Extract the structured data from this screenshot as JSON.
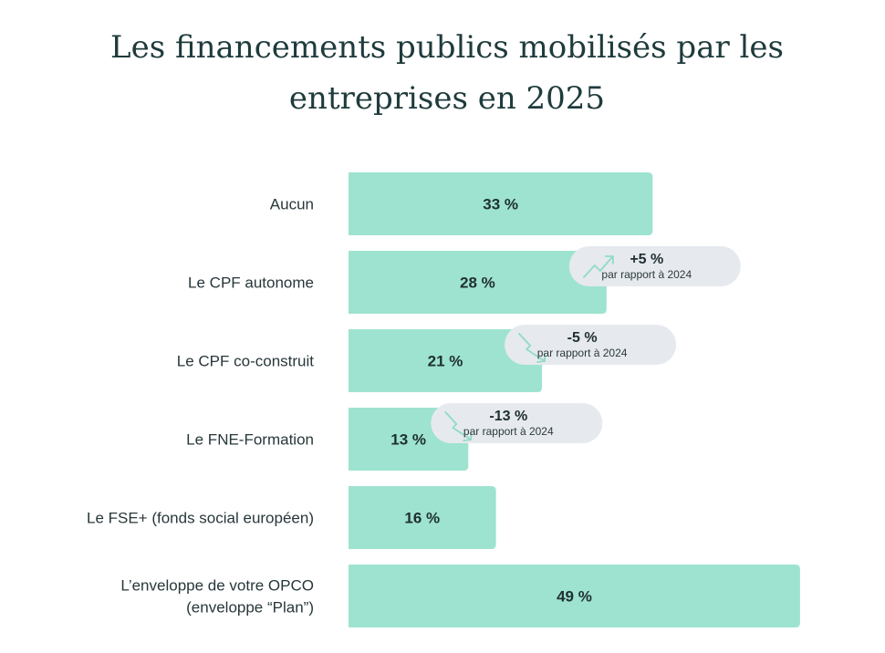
{
  "title": "Les financements publics mobilisés par les entreprises en 2025",
  "colors": {
    "bar": "#9ee3cf",
    "title": "#1f3b3c",
    "badge_bg": "#e6e9ee",
    "icon": "#8fdcc6"
  },
  "chart_data": {
    "type": "bar",
    "orientation": "horizontal",
    "title": "Les financements publics mobilisés par les entreprises en 2025",
    "xlabel": "",
    "ylabel": "",
    "xlim": [
      0,
      50
    ],
    "grid": false,
    "categories": [
      [
        "Aucun"
      ],
      [
        "Le CPF autonome"
      ],
      [
        "Le CPF co-construit"
      ],
      [
        "Le FNE-Formation"
      ],
      [
        "Le FSE+ (fonds social européen)"
      ],
      [
        "L’enveloppe de votre OPCO",
        "(enveloppe “Plan”)"
      ]
    ],
    "values": [
      33,
      28,
      21,
      13,
      16,
      49
    ],
    "value_labels": [
      "33 %",
      "28 %",
      "21 %",
      "13 %",
      "16 %",
      "49 %"
    ],
    "annotations": [
      {
        "category_index": 1,
        "delta": "+5 %",
        "note": "par rapport à 2024",
        "trend": "up",
        "icon": "trend-up-icon"
      },
      {
        "category_index": 2,
        "delta": "-5 %",
        "note": "par rapport à 2024",
        "trend": "down",
        "icon": "trend-down-icon"
      },
      {
        "category_index": 3,
        "delta": "-13 %",
        "note": "par rapport à 2024",
        "trend": "down",
        "icon": "trend-down-icon"
      }
    ]
  }
}
